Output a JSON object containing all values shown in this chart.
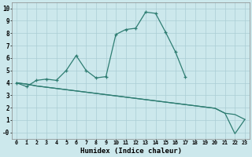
{
  "xlabel": "Humidex (Indice chaleur)",
  "bg_color": "#cce8ec",
  "grid_color": "#aacdd4",
  "line_color": "#2e7d72",
  "x_main": [
    0,
    1,
    2,
    3,
    4,
    5,
    6,
    7,
    8,
    9,
    10,
    11,
    12,
    13,
    14,
    15,
    16,
    17
  ],
  "y_main": [
    4.0,
    3.7,
    4.2,
    4.3,
    4.2,
    5.0,
    6.2,
    5.0,
    4.4,
    4.5,
    7.9,
    8.3,
    8.4,
    9.7,
    9.6,
    8.1,
    6.5,
    4.5
  ],
  "x_line2": [
    0,
    1,
    2,
    3,
    4,
    5,
    6,
    7,
    8,
    9,
    10,
    11,
    12,
    13,
    14,
    15,
    16,
    17,
    18,
    19,
    20,
    21,
    22,
    23
  ],
  "y_line2": [
    4.0,
    3.9,
    3.75,
    3.65,
    3.55,
    3.45,
    3.35,
    3.25,
    3.15,
    3.05,
    2.95,
    2.85,
    2.75,
    2.65,
    2.55,
    2.45,
    2.35,
    2.25,
    2.15,
    2.05,
    1.95,
    1.55,
    1.45,
    1.05
  ],
  "x_line3": [
    0,
    1,
    2,
    3,
    4,
    5,
    6,
    7,
    8,
    9,
    10,
    11,
    12,
    13,
    14,
    15,
    16,
    17,
    18,
    19,
    20,
    21,
    22,
    23
  ],
  "y_line3": [
    4.0,
    3.9,
    3.75,
    3.65,
    3.55,
    3.45,
    3.35,
    3.25,
    3.15,
    3.05,
    2.95,
    2.85,
    2.75,
    2.65,
    2.55,
    2.45,
    2.35,
    2.25,
    2.15,
    2.05,
    1.95,
    1.55,
    -0.1,
    1.05
  ],
  "ylim": [
    -0.5,
    10.5
  ],
  "yticks": [
    0,
    1,
    2,
    3,
    4,
    5,
    6,
    7,
    8,
    9,
    10
  ],
  "ytick_labels": [
    "-0",
    "1",
    "2",
    "3",
    "4",
    "5",
    "6",
    "7",
    "8",
    "9",
    "10"
  ],
  "xticks": [
    0,
    1,
    2,
    3,
    4,
    5,
    6,
    7,
    8,
    9,
    10,
    11,
    12,
    13,
    14,
    15,
    16,
    17,
    18,
    19,
    20,
    21,
    22,
    23
  ],
  "xlim": [
    -0.5,
    23.5
  ]
}
